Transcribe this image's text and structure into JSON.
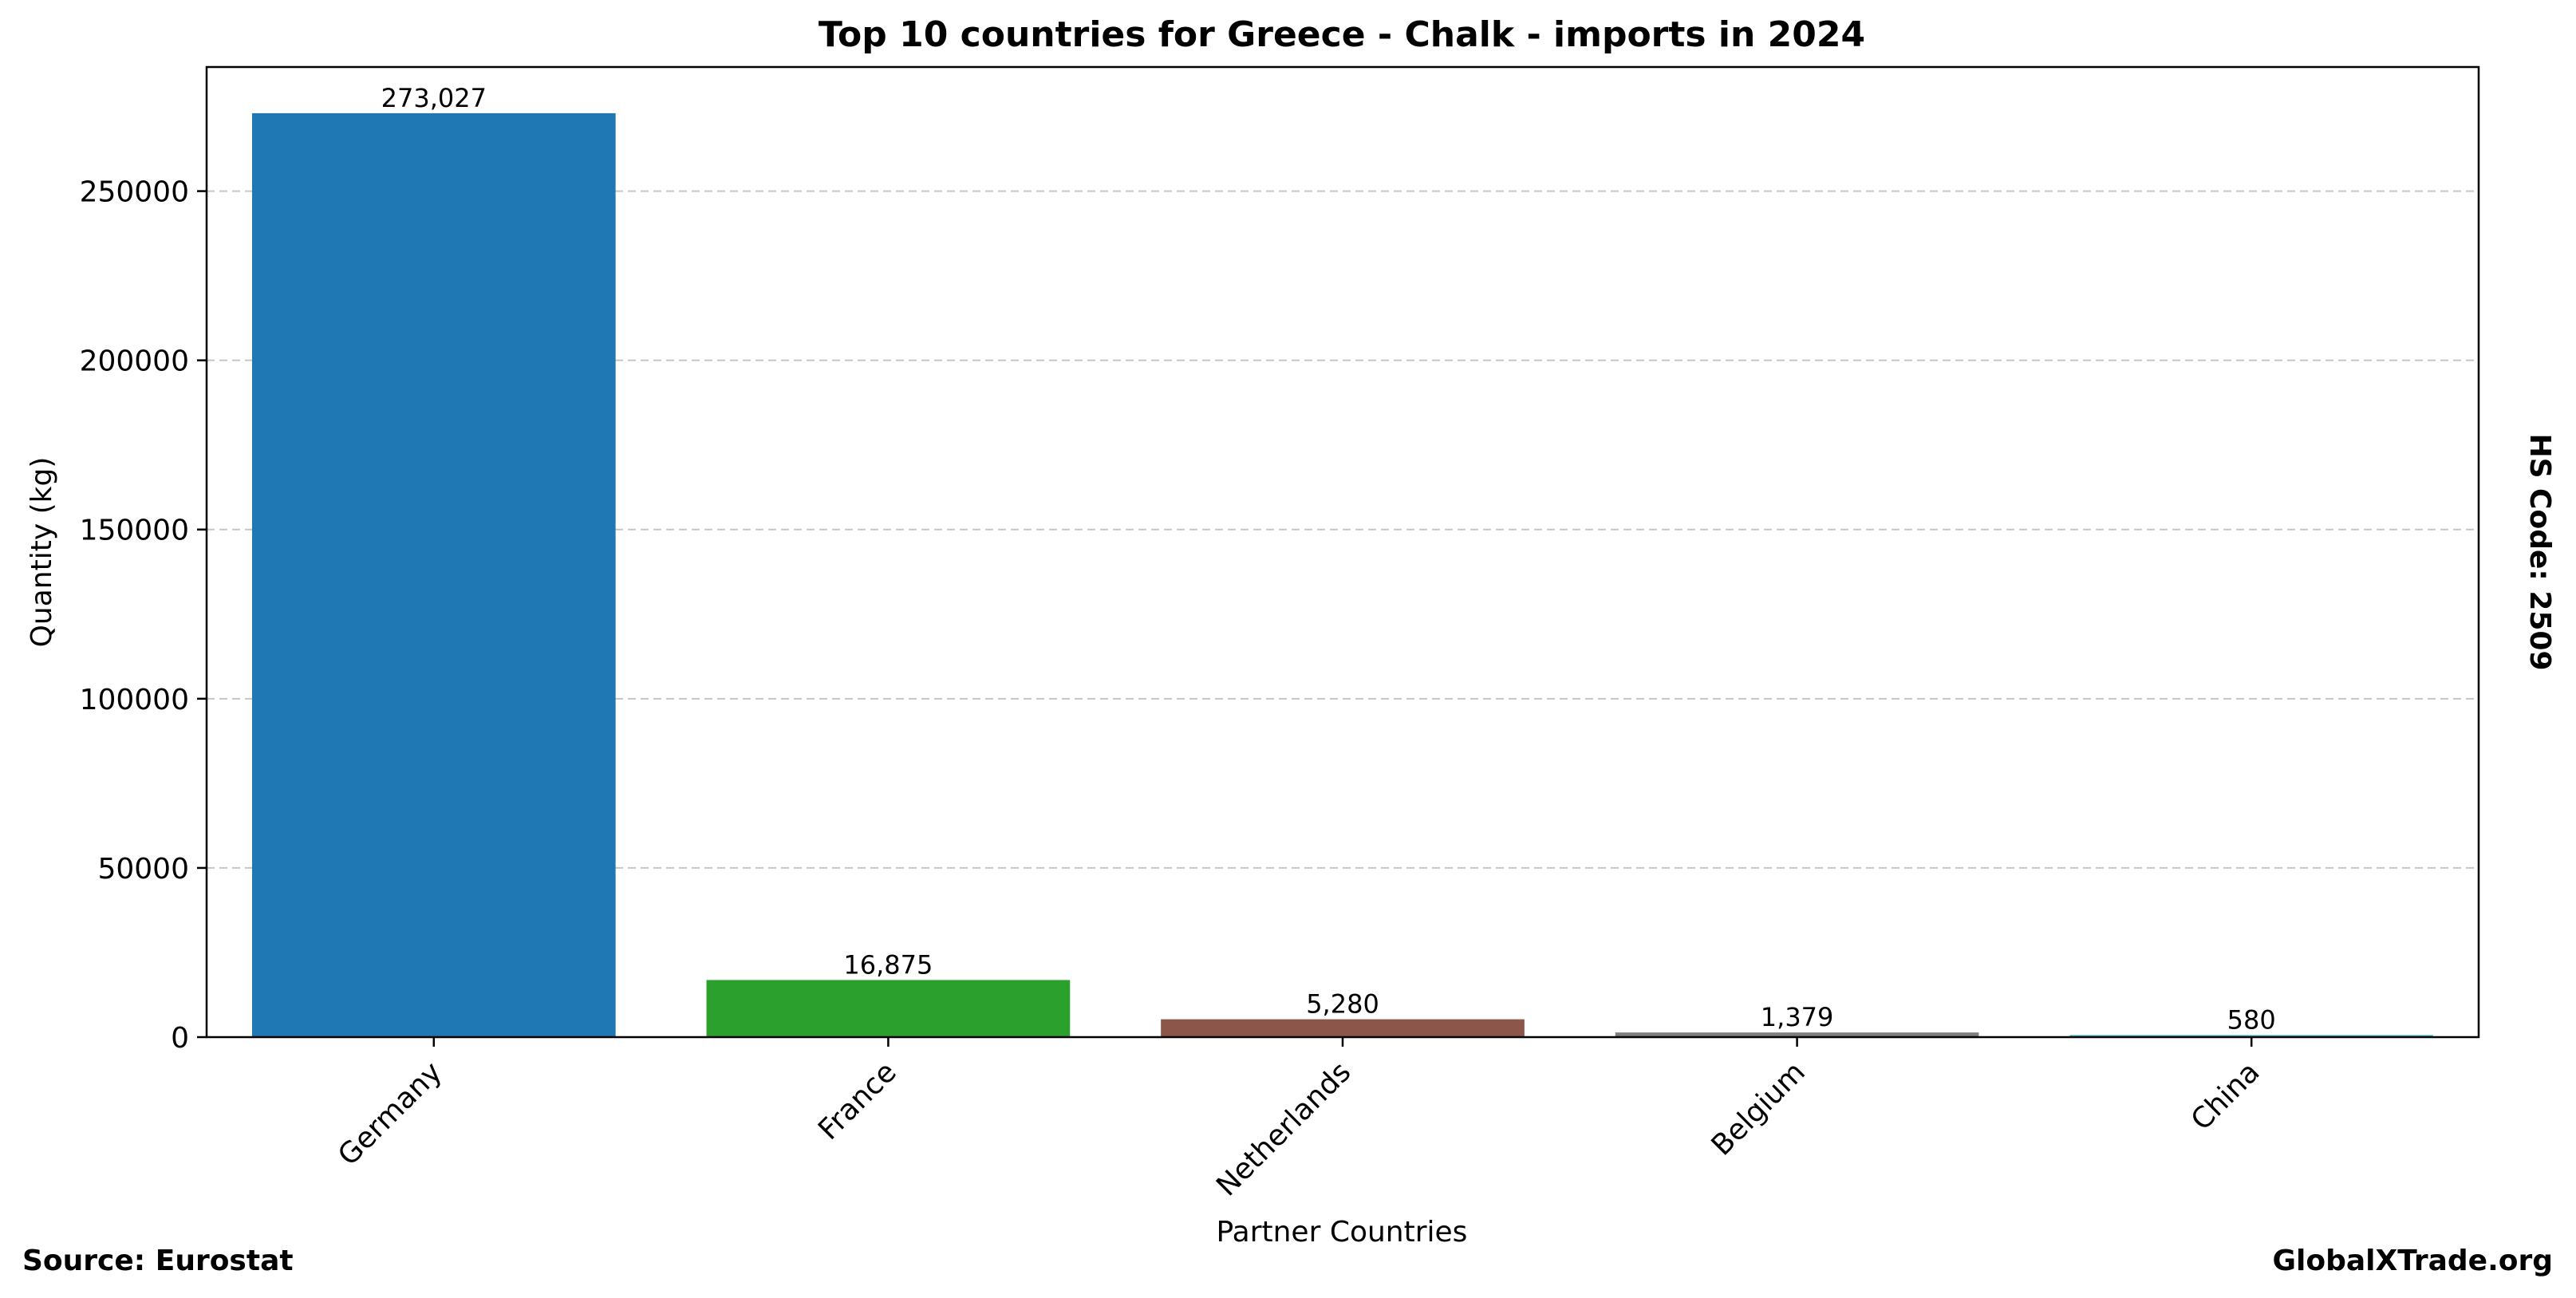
{
  "chart_data": {
    "type": "bar",
    "title": "Top 10 countries for Greece - Chalk - imports in 2024",
    "xlabel": "Partner Countries",
    "ylabel": "Quantity (kg)",
    "categories": [
      "Germany",
      "France",
      "Netherlands",
      "Belgium",
      "China"
    ],
    "values": [
      273027,
      16875,
      5280,
      1379,
      580
    ],
    "value_labels": [
      "273,027",
      "16,875",
      "5,280",
      "1,379",
      "580"
    ],
    "colors": [
      "#1f77b4",
      "#2ca02c",
      "#8c564b",
      "#7f7f7f",
      "#17becf"
    ],
    "ylim": [
      0,
      286678
    ],
    "yticks": [
      0,
      50000,
      100000,
      150000,
      200000,
      250000
    ],
    "ytick_labels": [
      "0",
      "50000",
      "100000",
      "150000",
      "200000",
      "250000"
    ],
    "grid": "y-dashed",
    "legend": "none"
  },
  "side_label": "HS Code: 2509",
  "footer": {
    "source": "Source: Eurostat",
    "brand": "GlobalXTrade.org"
  }
}
